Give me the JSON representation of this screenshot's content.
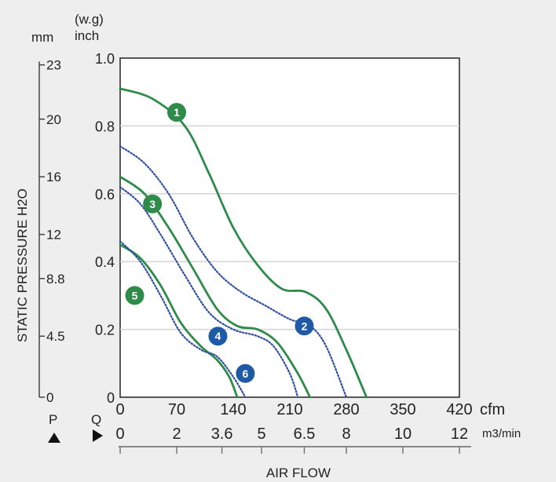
{
  "chart_data": {
    "type": "line",
    "title": "",
    "ylabel": "STATIC PRESSURE H2O",
    "xlabel": "AIR FLOW",
    "left_units": {
      "mm": "mm",
      "inch": "inch",
      "wg": "(w.g)"
    },
    "right_units": {
      "cfm": "cfm",
      "m3min": "m3/min"
    },
    "axis_symbols": {
      "p": "P",
      "q": "Q"
    },
    "xlim": [
      0,
      420
    ],
    "ylim": [
      0,
      1.0
    ],
    "grid": true,
    "inch_ticks": [
      "0",
      "0.2",
      "0.4",
      "0.6",
      "0.8",
      "1.0"
    ],
    "mm_ticks": [
      {
        "label": "0",
        "inch": 0.0
      },
      {
        "label": "4.5",
        "inch": 0.18
      },
      {
        "label": "8.8",
        "inch": 0.35
      },
      {
        "label": "12",
        "inch": 0.48
      },
      {
        "label": "16",
        "inch": 0.65
      },
      {
        "label": "20",
        "inch": 0.82
      },
      {
        "label": "23",
        "inch": 0.98
      }
    ],
    "cfm_ticks": [
      "0",
      "70",
      "140",
      "210",
      "280",
      "350",
      "420"
    ],
    "m3_ticks": [
      {
        "label": "0",
        "cfm": 0
      },
      {
        "label": "2",
        "cfm": 70
      },
      {
        "label": "3.6",
        "cfm": 126
      },
      {
        "label": "5",
        "cfm": 175
      },
      {
        "label": "6.5",
        "cfm": 228
      },
      {
        "label": "8",
        "cfm": 280
      },
      {
        "label": "10",
        "cfm": 350
      },
      {
        "label": "12",
        "cfm": 420
      }
    ],
    "colors": {
      "green": "#2e8b4a",
      "blue": "#1f5aa6",
      "dotted": "#2c4f9e",
      "grid": "#d4d4d4"
    },
    "series": [
      {
        "name": "1",
        "color": "green",
        "style": "solid",
        "points": [
          [
            0,
            0.91
          ],
          [
            40,
            0.88
          ],
          [
            80,
            0.8
          ],
          [
            110,
            0.66
          ],
          [
            140,
            0.5
          ],
          [
            170,
            0.39
          ],
          [
            200,
            0.32
          ],
          [
            230,
            0.31
          ],
          [
            255,
            0.26
          ],
          [
            280,
            0.14
          ],
          [
            305,
            0.0
          ]
        ],
        "label_at": [
          70,
          0.84
        ]
      },
      {
        "name": "2",
        "color": "blue",
        "style": "dotted",
        "points": [
          [
            0,
            0.74
          ],
          [
            30,
            0.69
          ],
          [
            60,
            0.6
          ],
          [
            90,
            0.47
          ],
          [
            120,
            0.37
          ],
          [
            150,
            0.31
          ],
          [
            180,
            0.27
          ],
          [
            210,
            0.23
          ],
          [
            235,
            0.21
          ],
          [
            255,
            0.15
          ],
          [
            280,
            0.0
          ]
        ],
        "label_at": [
          228,
          0.21
        ]
      },
      {
        "name": "3",
        "color": "green",
        "style": "solid",
        "points": [
          [
            0,
            0.65
          ],
          [
            30,
            0.6
          ],
          [
            60,
            0.5
          ],
          [
            90,
            0.38
          ],
          [
            120,
            0.26
          ],
          [
            145,
            0.21
          ],
          [
            170,
            0.2
          ],
          [
            195,
            0.16
          ],
          [
            220,
            0.07
          ],
          [
            235,
            0.0
          ]
        ],
        "label_at": [
          40,
          0.57
        ]
      },
      {
        "name": "4",
        "color": "blue",
        "style": "dotted",
        "points": [
          [
            0,
            0.62
          ],
          [
            25,
            0.57
          ],
          [
            50,
            0.48
          ],
          [
            80,
            0.36
          ],
          [
            110,
            0.25
          ],
          [
            140,
            0.2
          ],
          [
            170,
            0.18
          ],
          [
            190,
            0.15
          ],
          [
            210,
            0.07
          ],
          [
            220,
            0.0
          ]
        ],
        "label_at": [
          121,
          0.18
        ]
      },
      {
        "name": "5",
        "color": "green",
        "style": "solid",
        "points": [
          [
            0,
            0.45
          ],
          [
            25,
            0.41
          ],
          [
            50,
            0.33
          ],
          [
            75,
            0.22
          ],
          [
            100,
            0.15
          ],
          [
            120,
            0.11
          ],
          [
            135,
            0.06
          ],
          [
            145,
            0.0
          ]
        ],
        "label_at": [
          18,
          0.3
        ]
      },
      {
        "name": "6",
        "color": "blue",
        "style": "dotted",
        "points": [
          [
            0,
            0.46
          ],
          [
            25,
            0.4
          ],
          [
            50,
            0.3
          ],
          [
            75,
            0.19
          ],
          [
            100,
            0.14
          ],
          [
            120,
            0.12
          ],
          [
            140,
            0.06
          ],
          [
            155,
            0.0
          ]
        ],
        "label_at": [
          155,
          0.07
        ]
      }
    ]
  }
}
